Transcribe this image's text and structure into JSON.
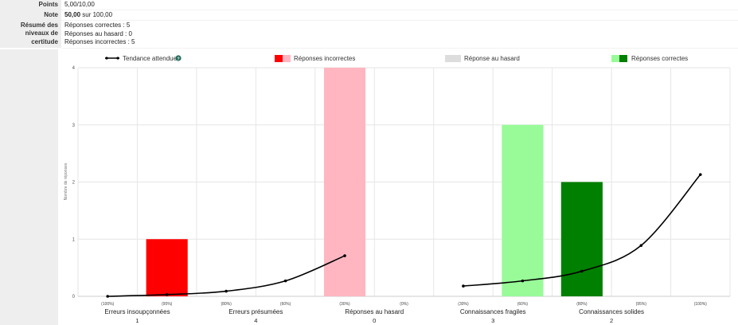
{
  "summary": {
    "points_label": "Points",
    "points_value": "5,00/10,00",
    "note_label": "Note",
    "note_strong": "50,00",
    "note_rest": "sur 100,00",
    "resume_label": [
      "Résumé des",
      "niveaux de",
      "certitude"
    ],
    "resume_lines": [
      "Réponses correctes : 5",
      "Réponses au hasard : 0",
      "Réponses incorrectes : 5"
    ]
  },
  "legend": {
    "trend": "Tendance attendue",
    "help_icon": "question-circle-icon",
    "incorrect": "Réponses incorrectes",
    "random": "Réponse au hasard",
    "correct": "Réponses correctes"
  },
  "chart_data": {
    "type": "bar",
    "ylabel": "Nombre de réponses",
    "ylim": [
      0,
      4
    ],
    "yticks": [
      0,
      1,
      2,
      3,
      4
    ],
    "grid": true,
    "legend_position": "top",
    "x_ticks": [
      "(100%)",
      "(95%)",
      "(80%)",
      "(60%)",
      "(30%)",
      "(0%)",
      "(30%)",
      "(60%)",
      "(80%)",
      "(95%)",
      "(100%)"
    ],
    "categories": [
      {
        "name": "Erreurs insoupçonnées",
        "count": "1"
      },
      {
        "name": "Erreurs présumées",
        "count": "4"
      },
      {
        "name": "Réponses au hasard",
        "count": "0"
      },
      {
        "name": "Connaissances fragiles",
        "count": "3"
      },
      {
        "name": "Connaissances solides",
        "count": "2"
      }
    ],
    "bars": [
      {
        "x_index": 1,
        "value": 1,
        "color": "#ff0000",
        "group": "Réponses incorrectes"
      },
      {
        "x_index": 4,
        "value": 4,
        "color": "#ffb6c1",
        "group": "Réponses incorrectes"
      },
      {
        "x_index": 7,
        "value": 3,
        "color": "#98fb98",
        "group": "Réponses correctes"
      },
      {
        "x_index": 8,
        "value": 2,
        "color": "#008000",
        "group": "Réponses correctes"
      }
    ],
    "trend_series": {
      "name": "Tendance attendue",
      "left": [
        {
          "x_index": 0,
          "y": 0.0
        },
        {
          "x_index": 1,
          "y": 0.03
        },
        {
          "x_index": 2,
          "y": 0.09
        },
        {
          "x_index": 3,
          "y": 0.27
        },
        {
          "x_index": 4,
          "y": 0.71
        }
      ],
      "right": [
        {
          "x_index": 6,
          "y": 0.18
        },
        {
          "x_index": 7,
          "y": 0.27
        },
        {
          "x_index": 8,
          "y": 0.44
        },
        {
          "x_index": 9,
          "y": 0.89
        },
        {
          "x_index": 10,
          "y": 2.13
        }
      ]
    },
    "colors": {
      "incorrect_dark": "#ff0000",
      "incorrect_light": "#ffb6c1",
      "random": "#dddddd",
      "correct_light": "#98fb98",
      "correct_dark": "#008000",
      "trend": "#000000",
      "help_icon": "#1f6b5a"
    }
  }
}
